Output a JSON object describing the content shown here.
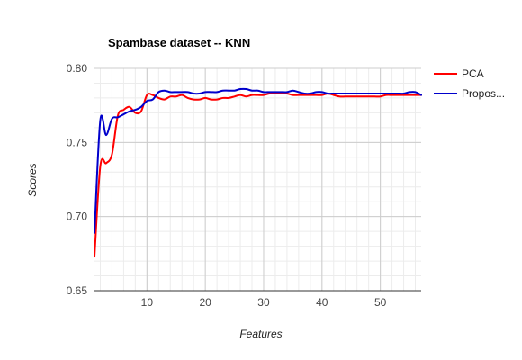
{
  "chart_data": {
    "type": "line",
    "title": "Spambase dataset -- KNN",
    "xlabel": "Features",
    "ylabel": "Scores",
    "xlim": [
      1,
      57
    ],
    "ylim": [
      0.65,
      0.8
    ],
    "xticks": [
      "10",
      "20",
      "30",
      "40",
      "50"
    ],
    "yticks": [
      "0.65",
      "0.70",
      "0.75",
      "0.80"
    ],
    "grid": true,
    "legend_position": "right",
    "legend": [
      "PCA",
      "Propos..."
    ],
    "series": [
      {
        "name": "PCA",
        "color": "#ff0000",
        "x": [
          1,
          2,
          3,
          4,
          5,
          6,
          7,
          8,
          9,
          10,
          11,
          12,
          13,
          14,
          15,
          16,
          17,
          18,
          19,
          20,
          21,
          22,
          23,
          24,
          25,
          26,
          27,
          28,
          29,
          30,
          31,
          32,
          33,
          34,
          35,
          36,
          37,
          38,
          39,
          40,
          41,
          42,
          43,
          44,
          45,
          46,
          47,
          48,
          49,
          50,
          51,
          52,
          53,
          54,
          55,
          56,
          57
        ],
        "values": [
          0.673,
          0.734,
          0.736,
          0.742,
          0.768,
          0.772,
          0.774,
          0.77,
          0.771,
          0.782,
          0.782,
          0.78,
          0.779,
          0.781,
          0.781,
          0.782,
          0.78,
          0.779,
          0.779,
          0.78,
          0.779,
          0.779,
          0.78,
          0.78,
          0.781,
          0.782,
          0.781,
          0.782,
          0.782,
          0.782,
          0.783,
          0.783,
          0.783,
          0.783,
          0.782,
          0.782,
          0.782,
          0.782,
          0.782,
          0.782,
          0.783,
          0.782,
          0.781,
          0.781,
          0.781,
          0.781,
          0.781,
          0.781,
          0.781,
          0.781,
          0.782,
          0.782,
          0.782,
          0.782,
          0.782,
          0.782,
          0.782
        ]
      },
      {
        "name": "Propos...",
        "color": "#0000cc",
        "x": [
          1,
          2,
          3,
          4,
          5,
          6,
          7,
          8,
          9,
          10,
          11,
          12,
          13,
          14,
          15,
          16,
          17,
          18,
          19,
          20,
          21,
          22,
          23,
          24,
          25,
          26,
          27,
          28,
          29,
          30,
          31,
          32,
          33,
          34,
          35,
          36,
          37,
          38,
          39,
          40,
          41,
          42,
          43,
          44,
          45,
          46,
          47,
          48,
          49,
          50,
          51,
          52,
          53,
          54,
          55,
          56,
          57
        ],
        "values": [
          0.689,
          0.765,
          0.755,
          0.766,
          0.767,
          0.769,
          0.771,
          0.772,
          0.774,
          0.778,
          0.779,
          0.784,
          0.785,
          0.784,
          0.784,
          0.784,
          0.784,
          0.783,
          0.783,
          0.784,
          0.784,
          0.784,
          0.785,
          0.785,
          0.785,
          0.786,
          0.786,
          0.785,
          0.785,
          0.784,
          0.784,
          0.784,
          0.784,
          0.784,
          0.785,
          0.784,
          0.783,
          0.783,
          0.784,
          0.784,
          0.783,
          0.783,
          0.783,
          0.783,
          0.783,
          0.783,
          0.783,
          0.783,
          0.783,
          0.783,
          0.783,
          0.783,
          0.783,
          0.783,
          0.784,
          0.784,
          0.782
        ]
      }
    ]
  }
}
